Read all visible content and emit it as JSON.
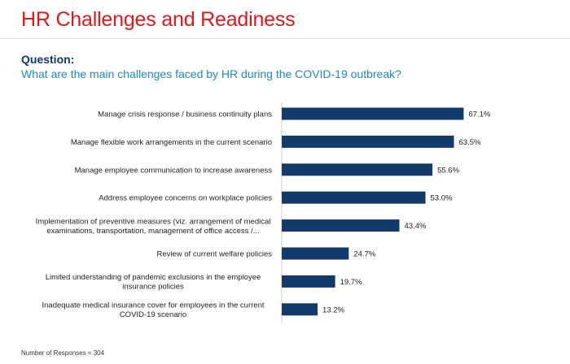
{
  "header": {
    "title": "HR Challenges and Readiness"
  },
  "question": {
    "label": "Question:",
    "text": "What are the main challenges faced by HR during the COVID-19 outbreak?"
  },
  "footnote": "Number of Responses = 304",
  "colors": {
    "title": "#e3171b",
    "question_label": "#0f3a6e",
    "question_text": "#1f8ab8",
    "bar": "#123a6b"
  },
  "chart_data": {
    "type": "bar",
    "orientation": "horizontal",
    "categories": [
      [
        "Manage crisis response / business continuity plans"
      ],
      [
        "Manage flexible work arrangements in the current scenario"
      ],
      [
        "Manage employee communication to increase awareness"
      ],
      [
        "Address employee concerns on workplace policies"
      ],
      [
        "Implementation of preventive measures (viz. arrangement of medical",
        "examinations, transportation, management of office access /..."
      ],
      [
        "Review of current welfare policies"
      ],
      [
        "Limited understanding of pandemic exclusions in the employee",
        "insurance policies"
      ],
      [
        "Inadequate medical insurance cover for employees in the current",
        "COVID-19 scenario"
      ]
    ],
    "values": [
      67.1,
      63.5,
      55.6,
      53.0,
      43.4,
      24.7,
      19.7,
      13.2
    ],
    "value_labels": [
      "67.1%",
      "63.5%",
      "55.6%",
      "53.0%",
      "43.4%",
      "24.7%",
      "19.7%",
      "13.2%"
    ],
    "xlim": [
      0,
      100
    ],
    "grid": false,
    "legend": "none"
  }
}
